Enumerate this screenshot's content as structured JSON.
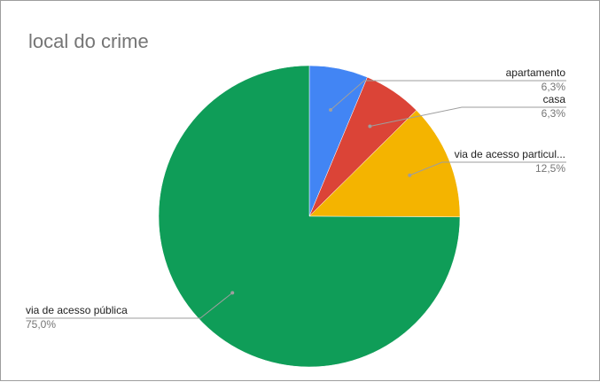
{
  "chart_data": {
    "type": "pie",
    "title": "local do crime",
    "slices": [
      {
        "label": "apartamento",
        "value": 6.3,
        "pct_label": "6,3%",
        "color": "#4285f4"
      },
      {
        "label": "casa",
        "value": 6.3,
        "pct_label": "6,3%",
        "color": "#db4437"
      },
      {
        "label": "via de acesso particul...",
        "value": 12.5,
        "pct_label": "12,5%",
        "color": "#f4b400"
      },
      {
        "label": "via de acesso pública",
        "value": 75.0,
        "pct_label": "75,0%",
        "color": "#0f9d58"
      }
    ],
    "start_angle": "12 o'clock",
    "direction": "clockwise",
    "legend": "none"
  }
}
